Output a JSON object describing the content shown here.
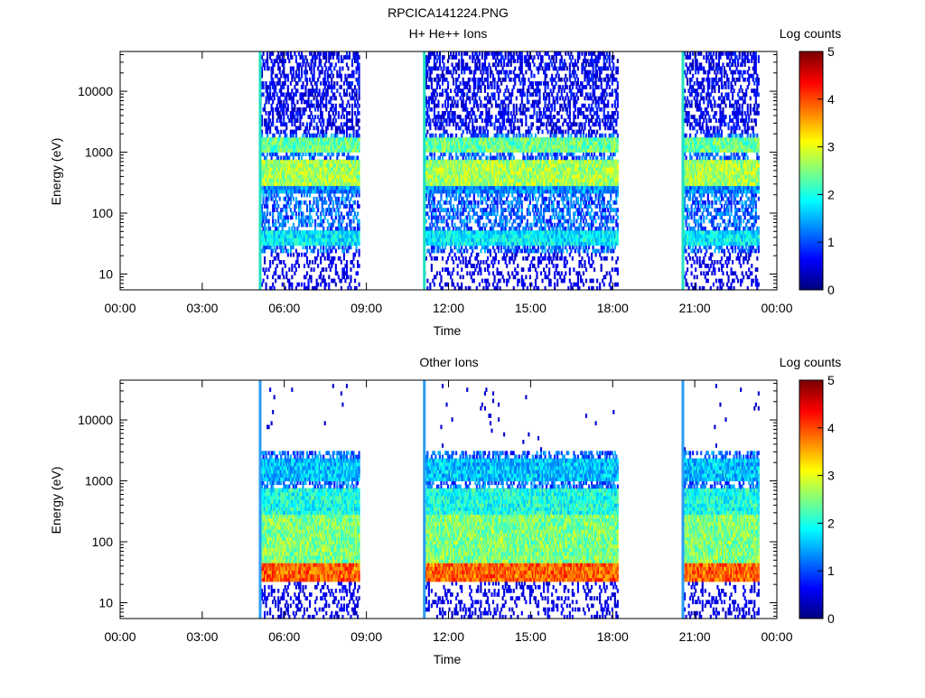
{
  "figure_title": "RPCICA141224.PNG",
  "chart_data": [
    {
      "type": "heatmap",
      "title": "H+ He++ Ions",
      "xlabel": "Time",
      "ylabel": "Energy (eV)",
      "y_scale": "log",
      "ylim": [
        5.5,
        45000
      ],
      "xlim": [
        "00:00",
        "24:00"
      ],
      "x_ticks": [
        "00:00",
        "03:00",
        "06:00",
        "09:00",
        "12:00",
        "15:00",
        "18:00",
        "21:00",
        "00:00"
      ],
      "y_ticks": [
        {
          "value": 10,
          "label": "10"
        },
        {
          "value": 100,
          "label": "100"
        },
        {
          "value": 1000,
          "label": "1000"
        },
        {
          "value": 10000,
          "label": "10000"
        }
      ],
      "colorbar": {
        "label": "Log counts",
        "range": [
          0,
          5
        ],
        "ticks": [
          "0",
          "1",
          "2",
          "3",
          "4",
          "5"
        ],
        "colormap": "jet"
      },
      "grid": false,
      "data_intervals_hours": [
        [
          5.1,
          8.75
        ],
        [
          11.1,
          18.2
        ],
        [
          20.55,
          23.35
        ]
      ],
      "bands": [
        {
          "e_low": 1000,
          "e_high": 1800,
          "level": 2.4
        },
        {
          "e_low": 300,
          "e_high": 800,
          "level": 2.7
        },
        {
          "e_low": 30,
          "e_high": 50,
          "level": 1.8
        },
        {
          "e_low": 200,
          "e_high": 300,
          "level": 1.3
        }
      ]
    },
    {
      "type": "heatmap",
      "title": "Other Ions",
      "xlabel": "Time",
      "ylabel": "Energy (eV)",
      "y_scale": "log",
      "ylim": [
        5.5,
        45000
      ],
      "xlim": [
        "00:00",
        "24:00"
      ],
      "x_ticks": [
        "00:00",
        "03:00",
        "06:00",
        "09:00",
        "12:00",
        "15:00",
        "18:00",
        "21:00",
        "00:00"
      ],
      "y_ticks": [
        {
          "value": 10,
          "label": "10"
        },
        {
          "value": 100,
          "label": "100"
        },
        {
          "value": 1000,
          "label": "1000"
        },
        {
          "value": 10000,
          "label": "10000"
        }
      ],
      "colorbar": {
        "label": "Log counts",
        "range": [
          0,
          5
        ],
        "ticks": [
          "0",
          "1",
          "2",
          "3",
          "4",
          "5"
        ],
        "colormap": "jet"
      },
      "grid": false,
      "data_intervals_hours": [
        [
          5.1,
          8.75
        ],
        [
          11.1,
          18.2
        ],
        [
          20.55,
          23.35
        ]
      ],
      "bands": [
        {
          "e_low": 22,
          "e_high": 45,
          "level": 3.9
        },
        {
          "e_low": 45,
          "e_high": 300,
          "level": 2.5
        },
        {
          "e_low": 300,
          "e_high": 800,
          "level": 2.0
        },
        {
          "e_low": 1000,
          "e_high": 2500,
          "level": 1.6
        }
      ]
    }
  ]
}
